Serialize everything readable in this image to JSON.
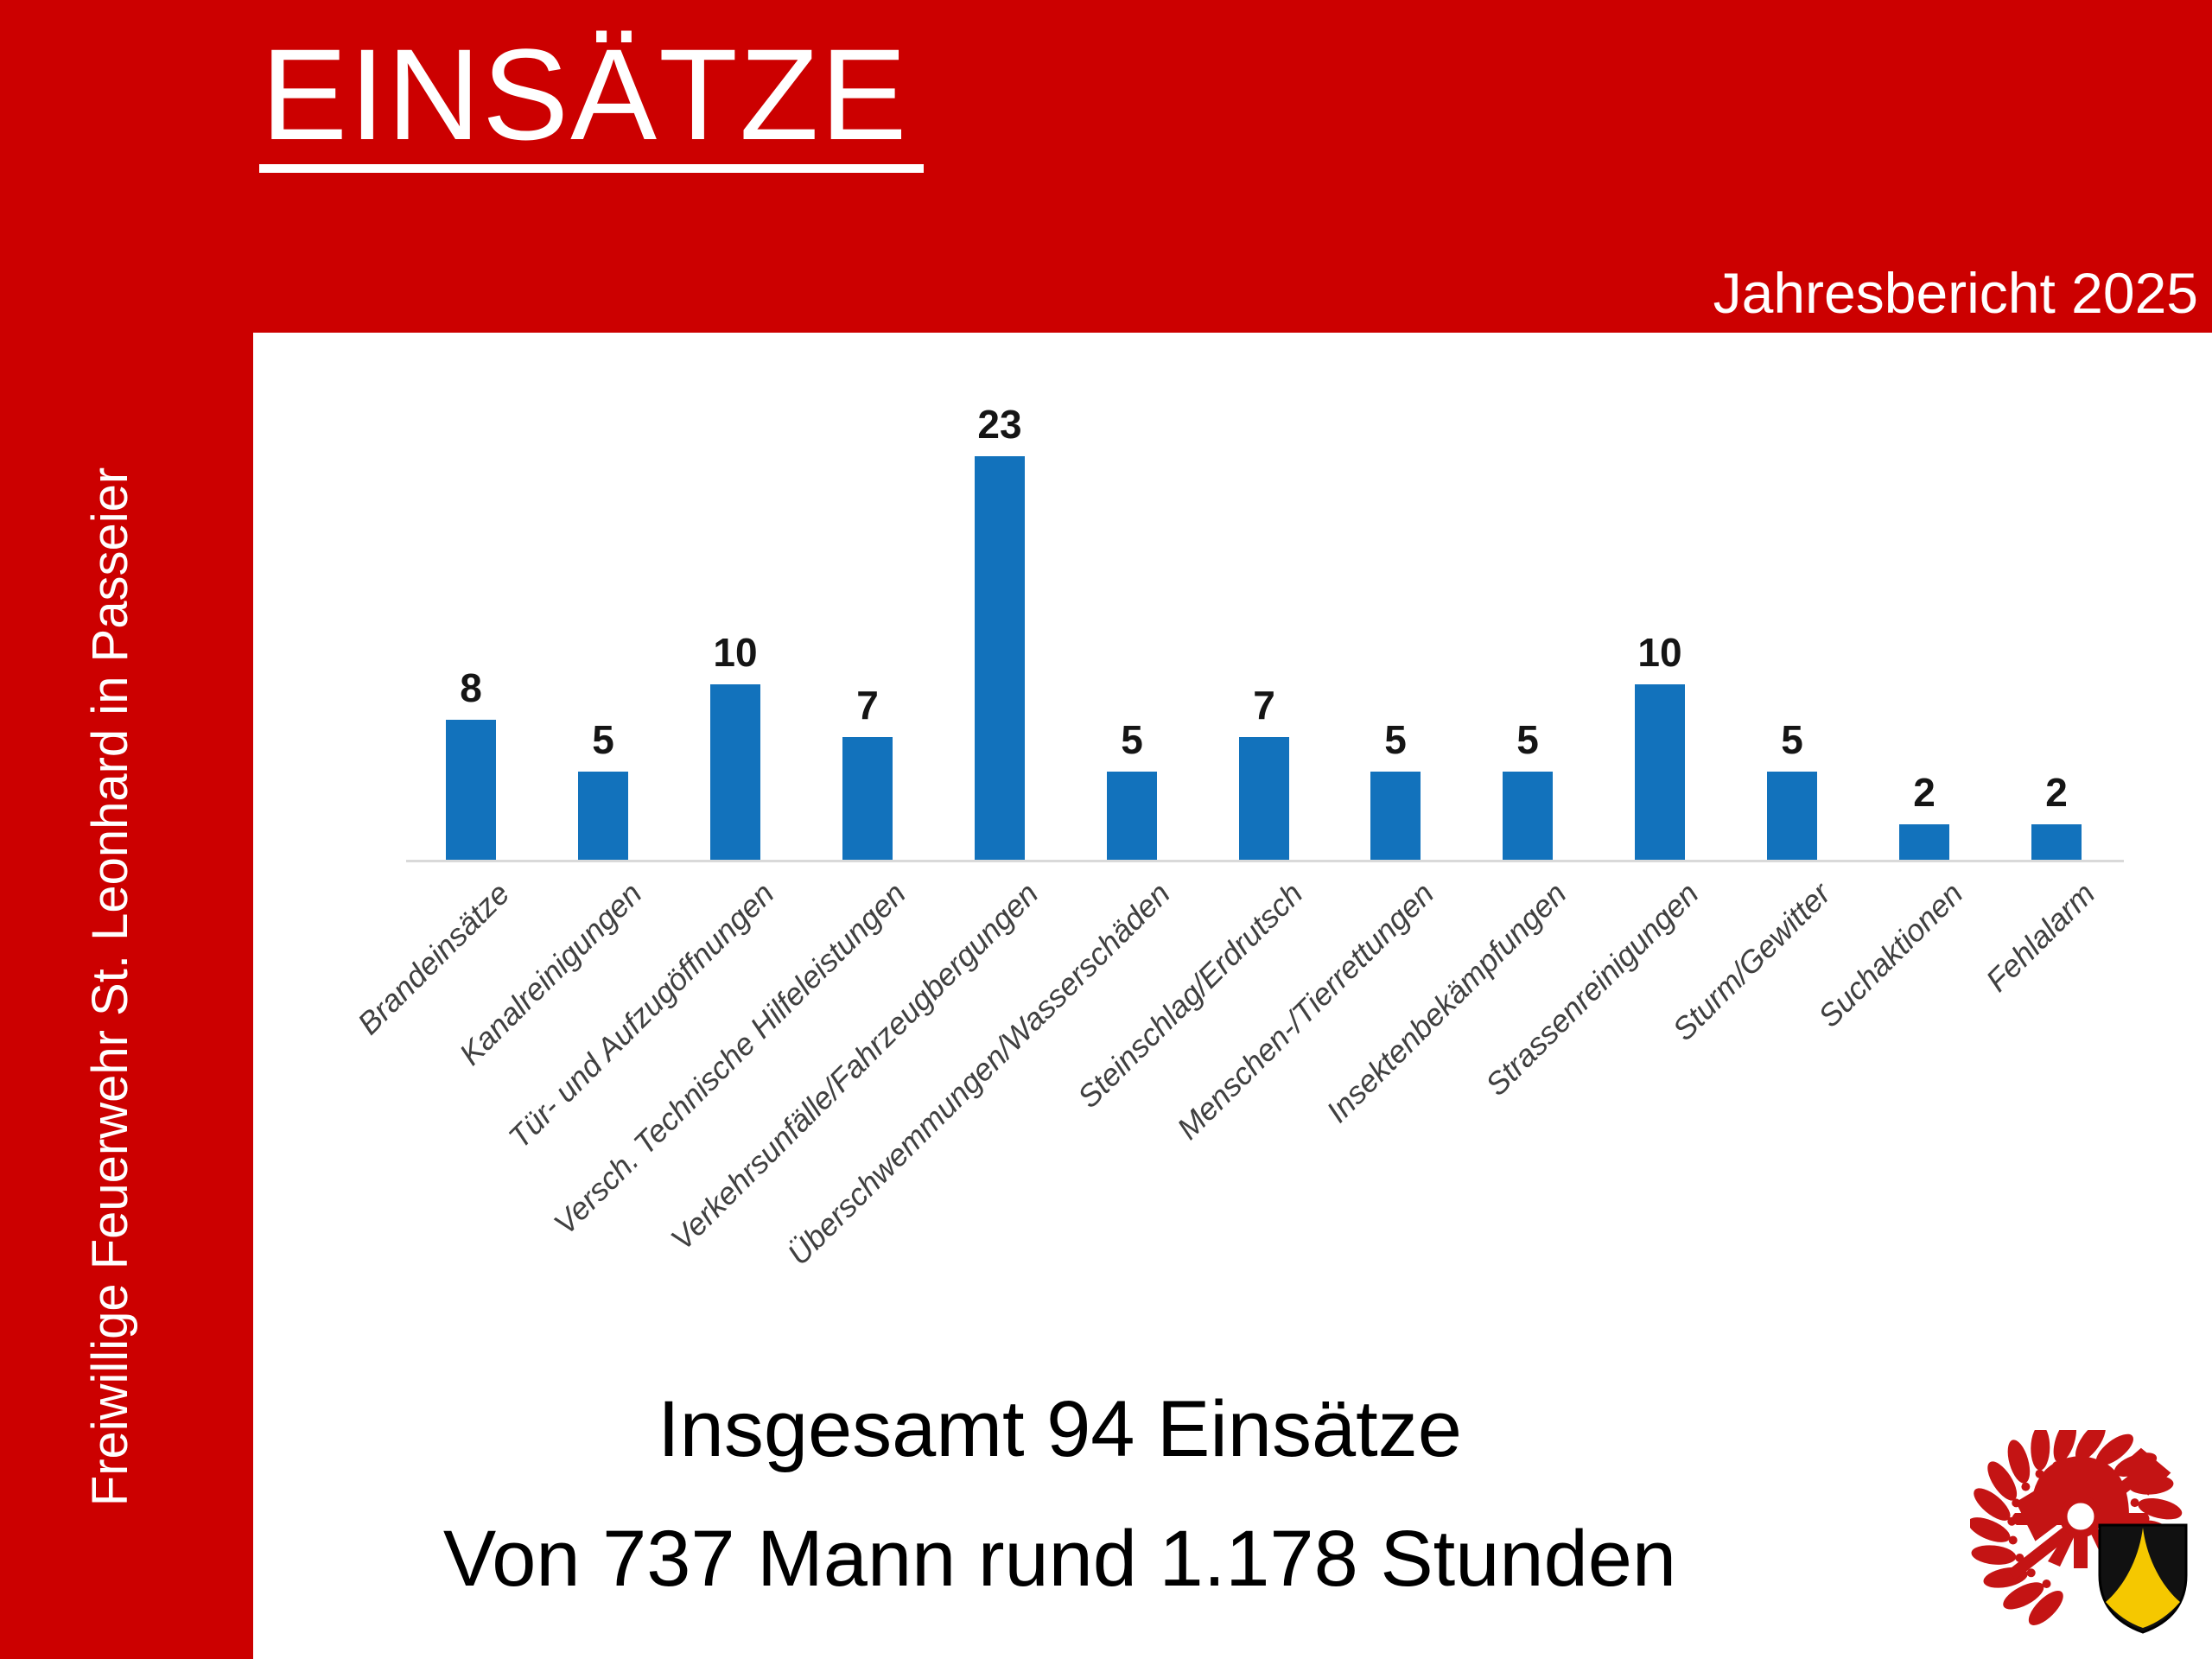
{
  "slide": {
    "title": "EINSÄTZE",
    "subtitle": "Jahresbericht 2025",
    "sidebar_text": "Freiwillige Feuerwehr St. Leonhard in Passeier",
    "summary_line1": "Insgesamt 94 Einsätze",
    "summary_line2": "Von 737 Mann rund 1.178 Stunden",
    "colors": {
      "frame_red": "#CC0000",
      "bar_blue": "#1272BC",
      "axis_gray": "#D9D9D9",
      "category_label_gray": "#404040",
      "text_white": "#FFFFFF",
      "text_black": "#000000"
    }
  },
  "chart_data": {
    "type": "bar",
    "title": "",
    "xlabel": "",
    "ylabel": "",
    "categories": [
      "Brandeinsätze",
      "Kanalreinigungen",
      "Tür- und Aufzugöffnungen",
      "Versch. Technische Hilfeleistungen",
      "Verkehrsunfälle/Fahrzeugbergungen",
      "Überschwemmungen/Wasserschäden",
      "Steinschlag/Erdrutsch",
      "Menschen-/Tierrettungen",
      "Insektenbekämpfungen",
      "Strassenreinigungen",
      "Sturm/Gewitter",
      "Suchaktionen",
      "Fehlalarm"
    ],
    "values": [
      8,
      5,
      10,
      7,
      23,
      5,
      7,
      5,
      5,
      10,
      5,
      2,
      2
    ],
    "ylim": [
      0,
      25
    ],
    "grid": false,
    "legend_position": "none",
    "bar_color": "#1272BC",
    "value_labels_shown": true,
    "category_label_rotation_deg": 45,
    "total_note": "94 Einsätze gesamt"
  },
  "logo": {
    "name": "freiwillige-feuerwehr-emblem",
    "elements": [
      "laurel-wreath",
      "fire-helmet",
      "axe",
      "coat-of-arms-shield"
    ],
    "wreath_color": "#C41414",
    "shield_black": "#111111",
    "shield_gold": "#F5C800"
  }
}
